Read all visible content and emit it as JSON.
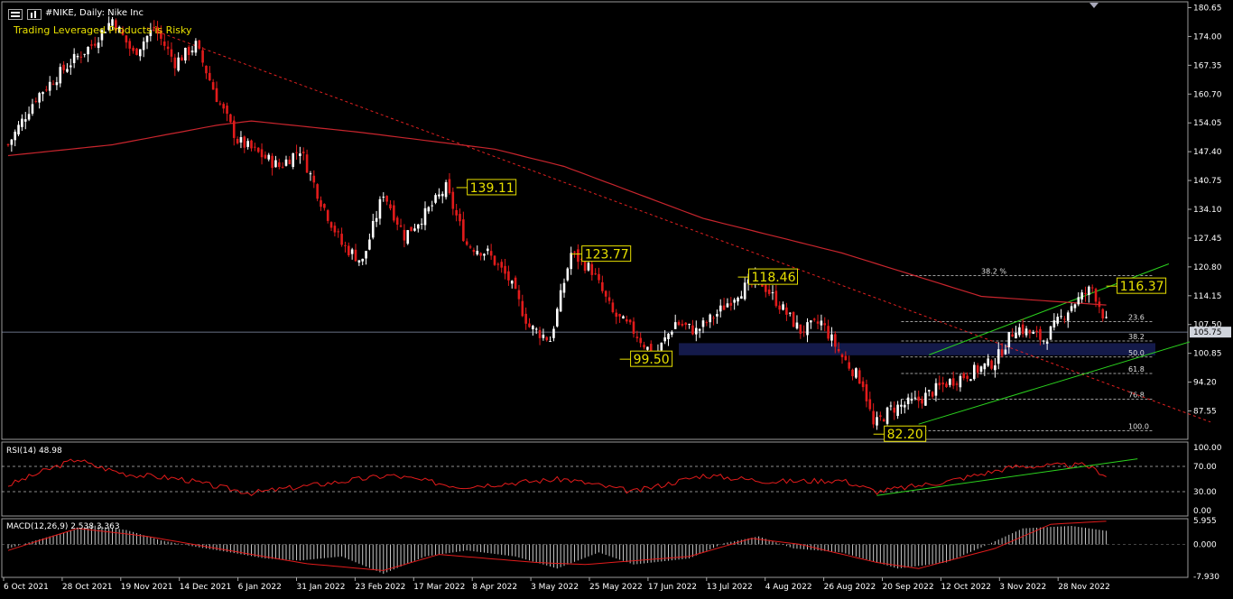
{
  "header": {
    "title": "#NIKE, Daily:  Nike Inc",
    "warning": "Trading Leveraged Products is Risky"
  },
  "chart_data": [
    {
      "type": "candlestick",
      "panel": "price",
      "y_ticks": [
        "180.65",
        "174.00",
        "167.35",
        "160.70",
        "154.05",
        "147.40",
        "140.75",
        "134.10",
        "127.45",
        "120.80",
        "114.15",
        "107.50",
        "100.85",
        "94.20",
        "87.55"
      ],
      "ylim": [
        81.0,
        182.0
      ],
      "current_price": "105.75",
      "x_ticks": [
        "6 Oct 2021",
        "28 Oct 2021",
        "19 Nov 2021",
        "14 Dec 2021",
        "6 Jan 2022",
        "31 Jan 2022",
        "23 Feb 2022",
        "17 Mar 2022",
        "8 Apr 2022",
        "3 May 2022",
        "25 May 2022",
        "17 Jun 2022",
        "13 Jul 2022",
        "4 Aug 2022",
        "26 Aug 2022",
        "20 Sep 2022",
        "12 Oct 2022",
        "3 Nov 2022",
        "28 Nov 2022"
      ],
      "anchors": [
        [
          0,
          149
        ],
        [
          8,
          160
        ],
        [
          18,
          168
        ],
        [
          24,
          172
        ],
        [
          30,
          178
        ],
        [
          36,
          170
        ],
        [
          42,
          176
        ],
        [
          48,
          168
        ],
        [
          54,
          172
        ],
        [
          60,
          160
        ],
        [
          66,
          150
        ],
        [
          72,
          147
        ],
        [
          78,
          144
        ],
        [
          84,
          148
        ],
        [
          90,
          136
        ],
        [
          96,
          126
        ],
        [
          102,
          122
        ],
        [
          108,
          138
        ],
        [
          114,
          128
        ],
        [
          120,
          133
        ],
        [
          126,
          139
        ],
        [
          132,
          126
        ],
        [
          138,
          124
        ],
        [
          144,
          118
        ],
        [
          150,
          107
        ],
        [
          156,
          104
        ],
        [
          162,
          124
        ],
        [
          168,
          120
        ],
        [
          174,
          110
        ],
        [
          180,
          106
        ],
        [
          186,
          100
        ],
        [
          192,
          108
        ],
        [
          198,
          106
        ],
        [
          204,
          110
        ],
        [
          210,
          115
        ],
        [
          216,
          118
        ],
        [
          222,
          112
        ],
        [
          228,
          106
        ],
        [
          234,
          108
        ],
        [
          240,
          100
        ],
        [
          246,
          94
        ],
        [
          249,
          84
        ],
        [
          254,
          88
        ],
        [
          262,
          90
        ],
        [
          270,
          94
        ],
        [
          276,
          96
        ],
        [
          284,
          99
        ],
        [
          290,
          107
        ],
        [
          298,
          104
        ],
        [
          306,
          112
        ],
        [
          312,
          116
        ],
        [
          316,
          108
        ]
      ],
      "ma_line": [
        [
          0,
          146.5
        ],
        [
          30,
          149
        ],
        [
          60,
          153.5
        ],
        [
          70,
          154.5
        ],
        [
          100,
          152
        ],
        [
          140,
          148
        ],
        [
          160,
          144
        ],
        [
          200,
          132
        ],
        [
          240,
          124
        ],
        [
          280,
          114
        ],
        [
          316,
          112
        ]
      ],
      "labels": [
        {
          "text": "139.11",
          "x": 129,
          "y": 139.11
        },
        {
          "text": "123.77",
          "x": 162,
          "y": 123.77
        },
        {
          "text": "118.46",
          "x": 210,
          "y": 118.46
        },
        {
          "text": "99.50",
          "x": 176,
          "y": 99.5
        },
        {
          "text": "82.20",
          "x": 249,
          "y": 82.2
        },
        {
          "text": "116.37",
          "x": 316,
          "y": 116.37
        }
      ],
      "fibonacci": [
        {
          "label": "38.2 %",
          "value": 118.8
        },
        {
          "label": "23.6",
          "value": 108.2
        },
        {
          "label": "38.2",
          "value": 103.7
        },
        {
          "label": "50.0",
          "value": 100.0
        },
        {
          "label": "61.8",
          "value": 96.2
        },
        {
          "label": "76.8",
          "value": 90.3
        },
        {
          "label": "100.0",
          "value": 83.0
        }
      ],
      "support_zone": [
        100.4,
        103.2
      ],
      "trendlines": {
        "downtrend": [
          [
            40,
            176
          ],
          [
            346,
            85
          ]
        ],
        "channel_upper": [
          [
            265,
            100.5
          ],
          [
            334,
            121.5
          ]
        ],
        "channel_lower": [
          [
            262,
            84.5
          ],
          [
            340,
            103.5
          ]
        ]
      }
    },
    {
      "type": "line",
      "panel": "rsi",
      "title": "RSI(14) 48.98",
      "y_ticks": [
        "100.00",
        "70.00",
        "30.00",
        "0.00"
      ],
      "ylim": [
        0,
        100
      ],
      "levels": [
        70,
        30
      ],
      "anchors": [
        [
          0,
          40
        ],
        [
          10,
          62
        ],
        [
          20,
          82
        ],
        [
          24,
          72
        ],
        [
          34,
          58
        ],
        [
          50,
          50
        ],
        [
          60,
          38
        ],
        [
          70,
          28
        ],
        [
          90,
          42
        ],
        [
          110,
          56
        ],
        [
          130,
          38
        ],
        [
          150,
          46
        ],
        [
          160,
          50
        ],
        [
          180,
          30
        ],
        [
          200,
          56
        ],
        [
          220,
          46
        ],
        [
          240,
          48
        ],
        [
          250,
          30
        ],
        [
          270,
          46
        ],
        [
          290,
          70
        ],
        [
          310,
          72
        ],
        [
          316,
          56
        ]
      ],
      "trendline": [
        [
          250,
          24
        ],
        [
          325,
          82
        ]
      ]
    },
    {
      "type": "bar",
      "panel": "macd",
      "title": "MACD(12,26,9) 2.538 3.363",
      "y_ticks": [
        "5.955",
        "0.000",
        "-7.930"
      ],
      "ylim": [
        -8.2,
        6.4
      ],
      "anchors": [
        [
          0,
          -1
        ],
        [
          12,
          2
        ],
        [
          24,
          4.8
        ],
        [
          34,
          3.6
        ],
        [
          44,
          1
        ],
        [
          54,
          -0.6
        ],
        [
          64,
          -2
        ],
        [
          74,
          -3.5
        ],
        [
          84,
          -4
        ],
        [
          96,
          -3
        ],
        [
          108,
          -7.3
        ],
        [
          120,
          -3
        ],
        [
          132,
          -1.5
        ],
        [
          146,
          -3
        ],
        [
          158,
          -6
        ],
        [
          170,
          -2
        ],
        [
          180,
          -5
        ],
        [
          196,
          -3.5
        ],
        [
          206,
          0.3
        ],
        [
          216,
          2
        ],
        [
          226,
          -1
        ],
        [
          240,
          -2
        ],
        [
          256,
          -6
        ],
        [
          270,
          -4.5
        ],
        [
          282,
          0
        ],
        [
          292,
          4
        ],
        [
          306,
          4.6
        ],
        [
          316,
          3.4
        ]
      ],
      "signal_anchors": [
        [
          0,
          -1.5
        ],
        [
          20,
          4
        ],
        [
          40,
          2
        ],
        [
          60,
          -1
        ],
        [
          86,
          -4.8
        ],
        [
          108,
          -6.5
        ],
        [
          124,
          -2.5
        ],
        [
          152,
          -4.5
        ],
        [
          166,
          -5
        ],
        [
          196,
          -3
        ],
        [
          214,
          1.5
        ],
        [
          228,
          0
        ],
        [
          250,
          -4.5
        ],
        [
          262,
          -6
        ],
        [
          284,
          -1
        ],
        [
          300,
          5
        ],
        [
          316,
          5.8
        ]
      ]
    }
  ]
}
